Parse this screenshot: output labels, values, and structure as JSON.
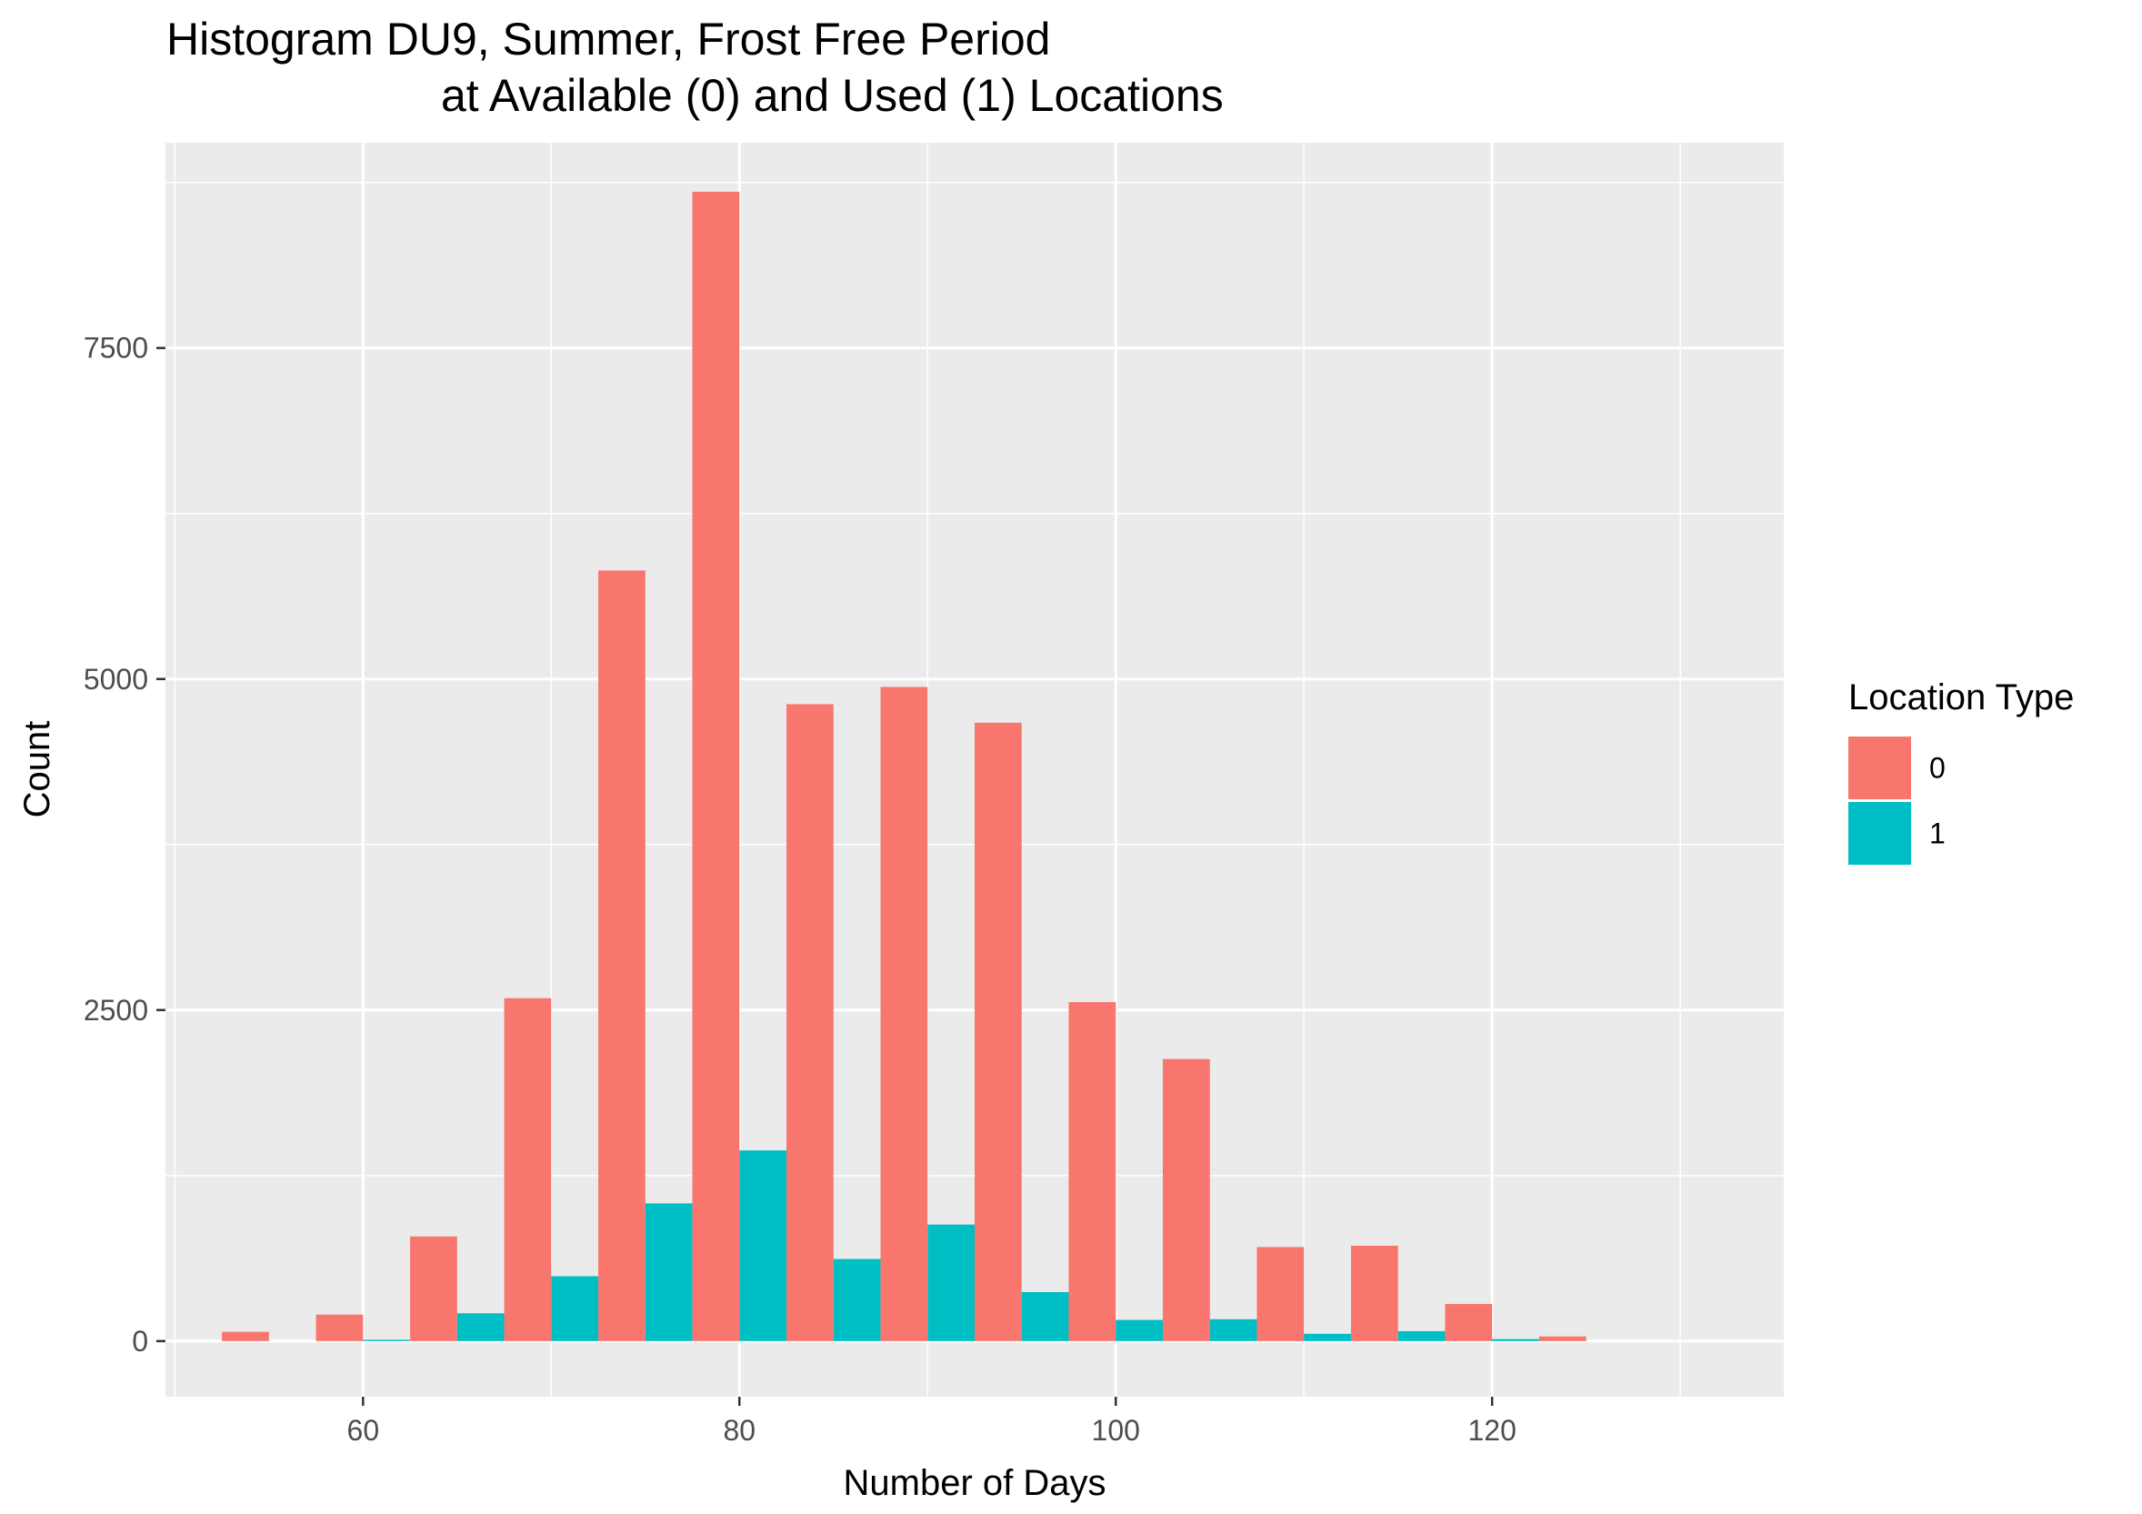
{
  "chart_data": {
    "type": "bar",
    "title_line1": "Histogram DU9, Summer, Frost Free Period",
    "title_line2": "at Available (0) and Used (1) Locations",
    "xlabel": "Number of Days",
    "ylabel": "Count",
    "xlim": [
      49.5,
      135.5
    ],
    "ylim": [
      -420,
      9050
    ],
    "x_ticks": [
      60,
      80,
      100,
      120
    ],
    "x_tick_labels": [
      "60",
      "80",
      "100",
      "120"
    ],
    "y_ticks": [
      0,
      2500,
      5000,
      7500
    ],
    "y_tick_labels": [
      "0",
      "2500",
      "5000",
      "7500"
    ],
    "bin_width": 5,
    "bin_centers": [
      55,
      60,
      65,
      70,
      75,
      80,
      85,
      90,
      95,
      100,
      105,
      110,
      115,
      120,
      125,
      130
    ],
    "series": [
      {
        "name": "0",
        "color": "#F8766D",
        "values": [
          70,
          200,
          790,
          2590,
          5820,
          8680,
          4810,
          4940,
          4670,
          2560,
          2130,
          710,
          720,
          280,
          35,
          0
        ]
      },
      {
        "name": "1",
        "color": "#00BFC4",
        "values": [
          0,
          10,
          210,
          490,
          1040,
          1440,
          620,
          880,
          370,
          160,
          165,
          55,
          75,
          15,
          0,
          0
        ]
      }
    ],
    "grid": true,
    "legend": {
      "title": "Location Type",
      "placement": "right"
    }
  },
  "colors": {
    "panel_background": "#EBEBEB",
    "gridline": "#FFFFFF",
    "tick_text": "#4D4D4D"
  }
}
